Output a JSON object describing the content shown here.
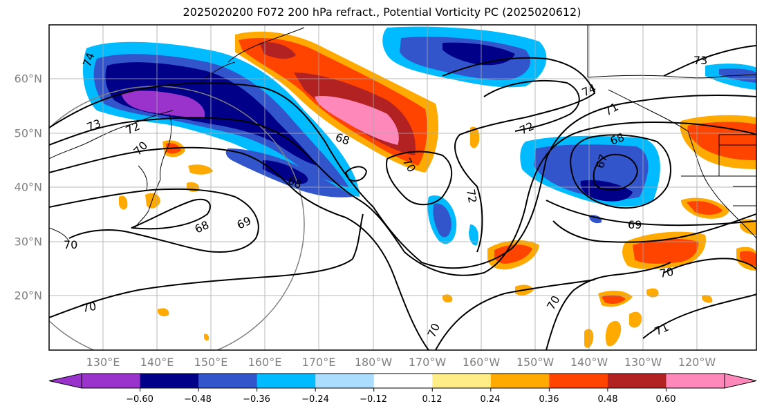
{
  "title": "2025020200 F072 200 hPa refract., Potential Vorticity PC (2025020612)",
  "map": {
    "lon_range": [
      120,
      251
    ],
    "lat_range": [
      10,
      70
    ],
    "gridlines": true,
    "lat_labels": [
      "60°N",
      "50°N",
      "40°N",
      "30°N",
      "20°N"
    ],
    "lat_values": [
      60,
      50,
      40,
      30,
      20
    ],
    "lon_labels": [
      "130°E",
      "140°E",
      "150°E",
      "160°E",
      "170°E",
      "180°W",
      "170°W",
      "160°W",
      "150°W",
      "140°W",
      "130°W",
      "120°W"
    ],
    "lon_values": [
      130,
      140,
      150,
      160,
      170,
      180,
      190,
      200,
      210,
      220,
      230,
      240
    ]
  },
  "contour_labels": [
    "74",
    "73",
    "72",
    "70",
    "68",
    "69",
    "70",
    "68",
    "68",
    "70",
    "72",
    "74",
    "72",
    "71",
    "68",
    "67",
    "69",
    "73",
    "70",
    "70",
    "70",
    "71",
    "70"
  ],
  "colorbar": {
    "colors": [
      "#9933cc",
      "#000088",
      "#3355cc",
      "#00bbff",
      "#aaddff",
      "#ffffff",
      "#ffee88",
      "#ffaa00",
      "#ff4400",
      "#b22222",
      "#ff88bb"
    ],
    "tick_labels": [
      "−0.60",
      "−0.48",
      "−0.36",
      "−0.24",
      "−0.12",
      "0.12",
      "0.24",
      "0.36",
      "0.48",
      "0.60"
    ],
    "extend": "both"
  }
}
